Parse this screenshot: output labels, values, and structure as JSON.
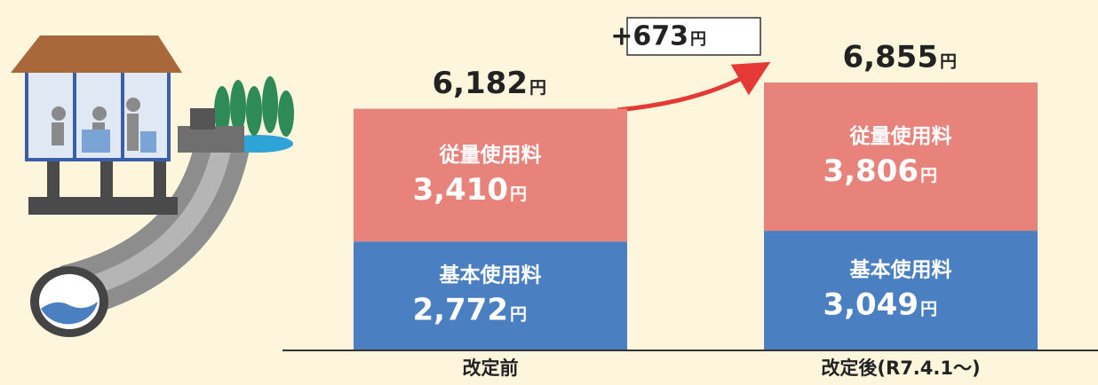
{
  "chart_data": {
    "type": "stacked-bar",
    "categories": [
      "改定前",
      "改定後(R7.4.1～)"
    ],
    "unit": "円",
    "series": [
      {
        "name": "基本使用料",
        "color": "#4a7fc2",
        "values": [
          2772,
          3049
        ],
        "value_labels": [
          "2,772",
          "3,049"
        ]
      },
      {
        "name": "従量使用料",
        "color": "#e8837b",
        "values": [
          3410,
          3806
        ],
        "value_labels": [
          "3,410",
          "3,806"
        ]
      }
    ],
    "totals": [
      6182,
      6855
    ],
    "total_labels": [
      "6,182",
      "6,855"
    ],
    "difference": {
      "value": 673,
      "label": "+673"
    }
  }
}
